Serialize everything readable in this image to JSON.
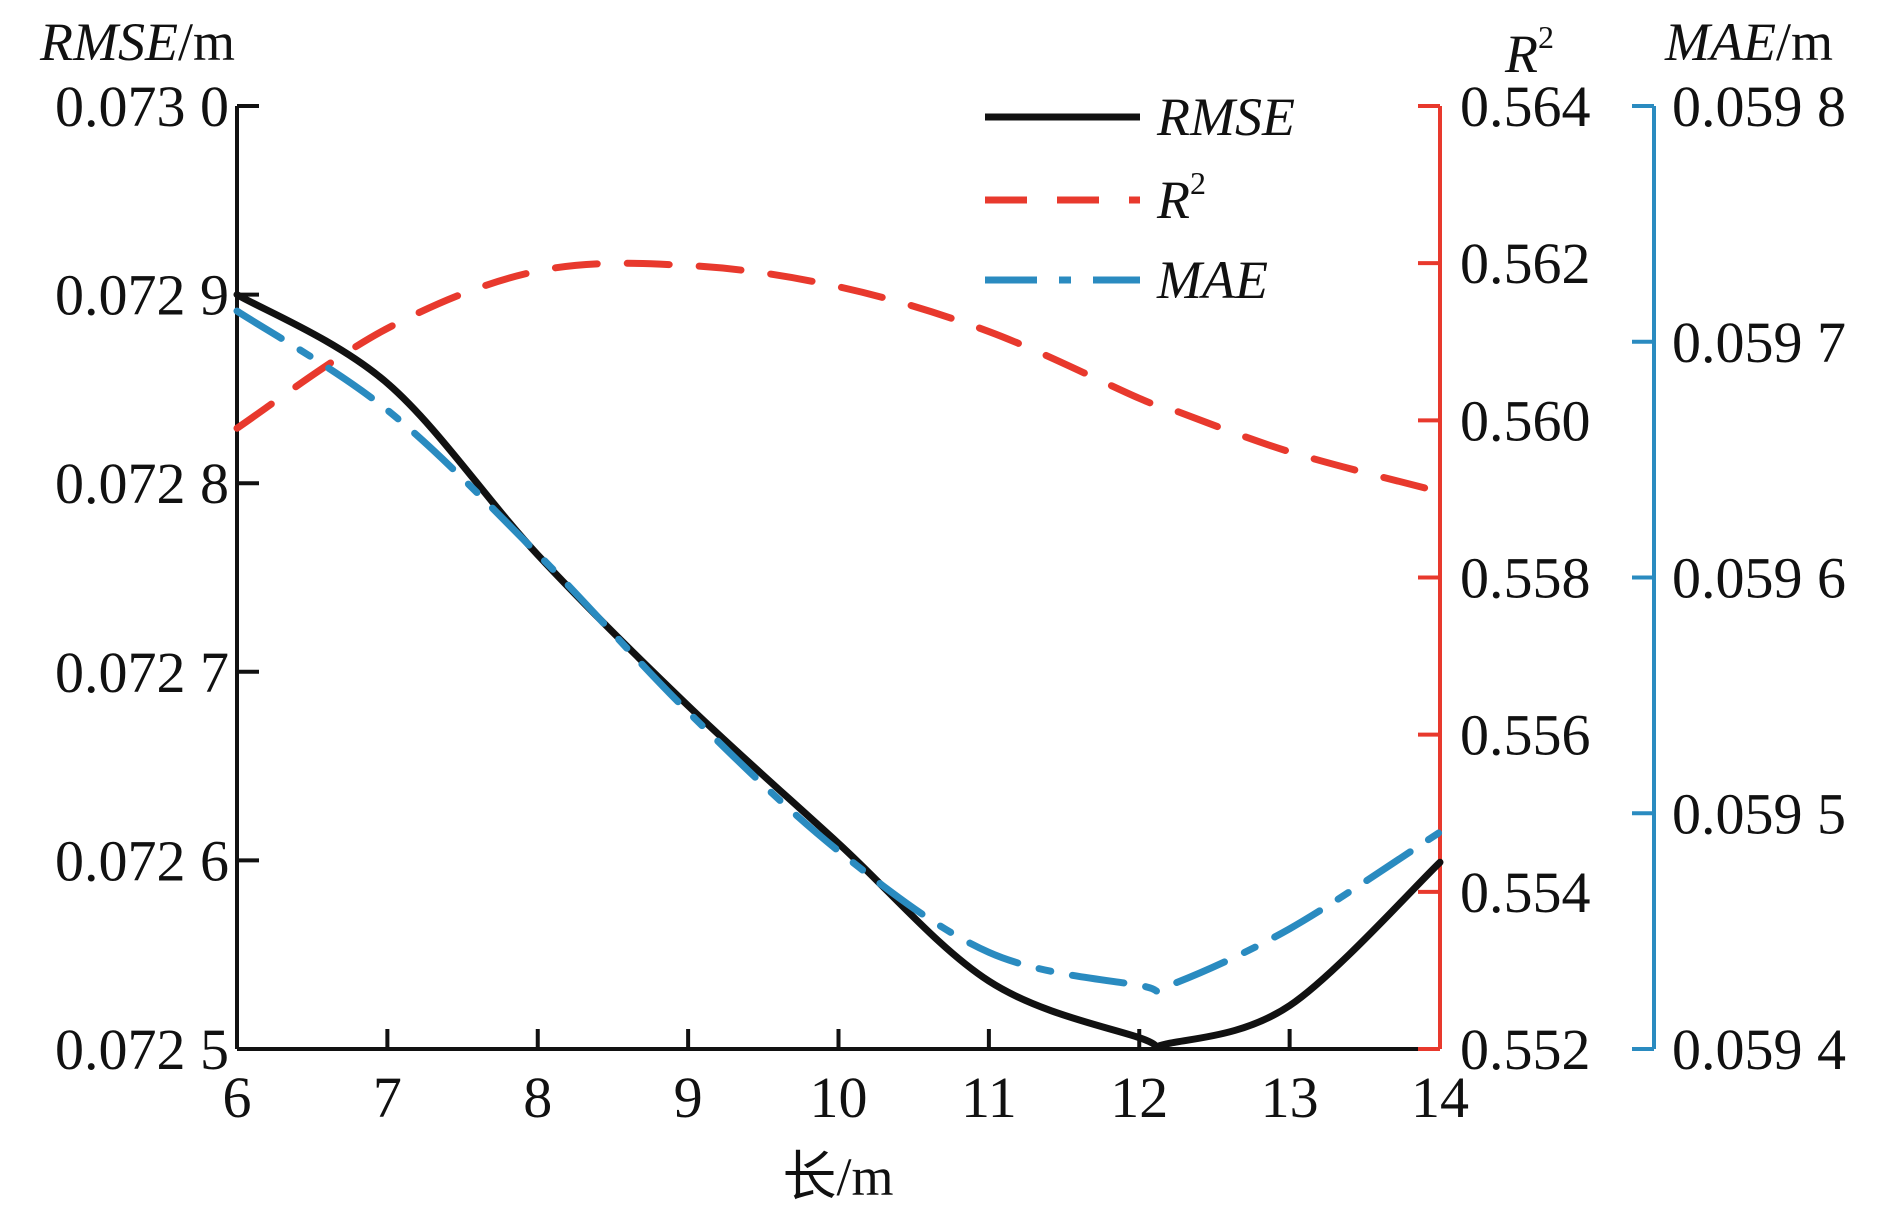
{
  "chart_data": {
    "type": "line",
    "title": "",
    "xlabel": "长/m",
    "x_ticks": [
      "6",
      "7",
      "8",
      "9",
      "10",
      "11",
      "12",
      "13",
      "14"
    ],
    "xlim": [
      6,
      14
    ],
    "axes": {
      "left": {
        "label_italic": "RMSE",
        "label_unit": "/m",
        "ylim": [
          0.0725,
          0.073
        ],
        "ticks": [
          0.0725,
          0.0726,
          0.0727,
          0.0728,
          0.0729,
          0.073
        ],
        "tick_labels": [
          "0.072 5",
          "0.072 6",
          "0.072 7",
          "0.072 8",
          "0.072 9",
          "0.073 0"
        ],
        "color": "#111111"
      },
      "right1": {
        "label_italic": "R",
        "label_sup": "2",
        "ylim": [
          0.552,
          0.564
        ],
        "ticks": [
          0.552,
          0.554,
          0.556,
          0.558,
          0.56,
          0.562,
          0.564
        ],
        "tick_labels": [
          "0.552",
          "0.554",
          "0.556",
          "0.558",
          "0.560",
          "0.562",
          "0.564"
        ],
        "color": "#e8392d"
      },
      "right2": {
        "label_italic": "MAE",
        "label_unit": "/m",
        "ylim": [
          0.0594,
          0.0598
        ],
        "ticks": [
          0.0594,
          0.0595,
          0.0596,
          0.0597,
          0.0598
        ],
        "tick_labels": [
          "0.059 4",
          "0.059 5",
          "0.059 6",
          "0.059 7",
          "0.059 8"
        ],
        "color": "#2a8bc0"
      }
    },
    "x": [
      6,
      7,
      8,
      9,
      10,
      11,
      12,
      12.2,
      13,
      14
    ],
    "series": [
      {
        "name": "RMSE",
        "axis": "left",
        "style": "solid",
        "color": "#111111",
        "values": [
          0.0729,
          0.072853,
          0.072762,
          0.072682,
          0.072609,
          0.072536,
          0.072506,
          0.072503,
          0.072523,
          0.072599
        ]
      },
      {
        "name": "R2",
        "axis": "right1",
        "style": "dashed",
        "color": "#e8392d",
        "values": [
          0.5599,
          0.56117,
          0.5619,
          0.56197,
          0.5617,
          0.56113,
          0.56028,
          0.56015,
          0.5596,
          0.55909
        ]
      },
      {
        "name": "MAE",
        "axis": "right2",
        "style": "dashdot",
        "color": "#2a8bc0",
        "values": [
          0.059713,
          0.059671,
          0.05961,
          0.059543,
          0.059484,
          0.059441,
          0.059427,
          0.059427,
          0.059451,
          0.059492
        ]
      }
    ],
    "legend": {
      "position": "top-right-inside",
      "entries": [
        {
          "label": "RMSE",
          "sup": ""
        },
        {
          "label": "R",
          "sup": "2"
        },
        {
          "label": "MAE",
          "sup": ""
        }
      ]
    },
    "grid": false
  }
}
